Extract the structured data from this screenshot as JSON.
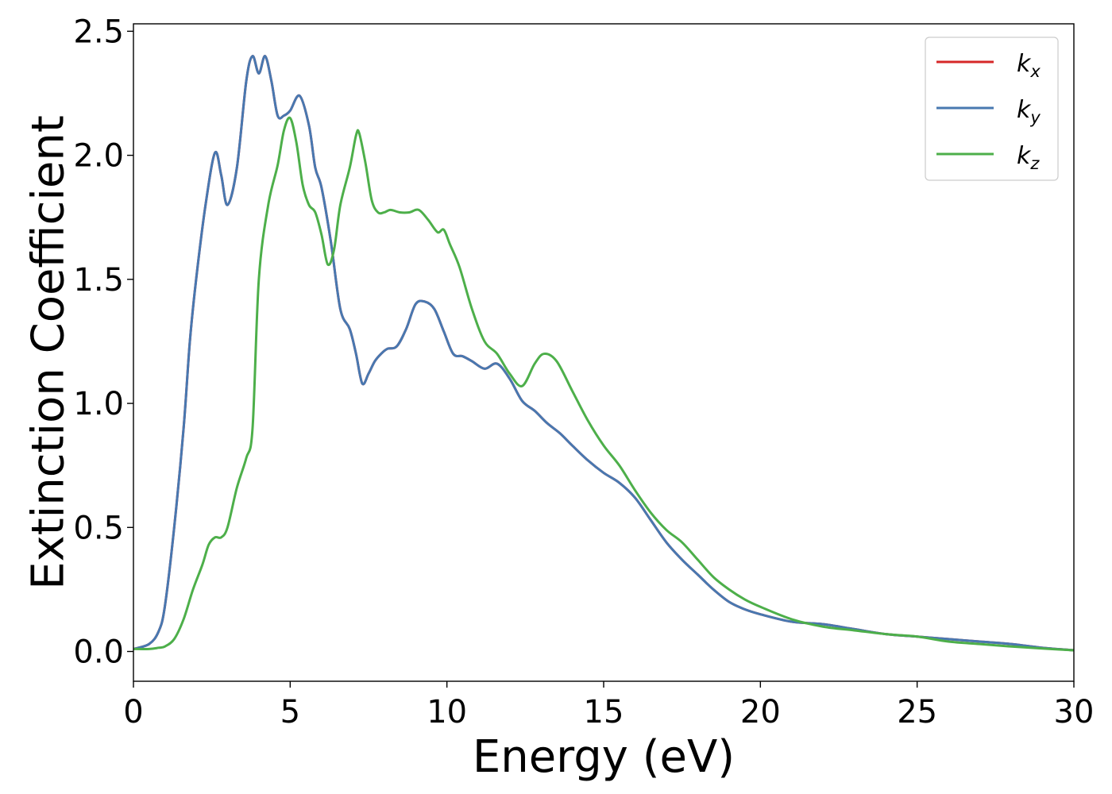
{
  "chart_data": {
    "type": "line",
    "xlabel": "Energy (eV)",
    "ylabel": "Extinction Coefficient",
    "xlim": [
      0,
      30
    ],
    "ylim": [
      -0.12,
      2.53
    ],
    "xticks": [
      0,
      5,
      10,
      15,
      20,
      25,
      30
    ],
    "xtick_labels": [
      "0",
      "5",
      "10",
      "15",
      "20",
      "25",
      "30"
    ],
    "yticks": [
      0.0,
      0.5,
      1.0,
      1.5,
      2.0,
      2.5
    ],
    "ytick_labels": [
      "0.0",
      "0.5",
      "1.0",
      "1.5",
      "2.0",
      "2.5"
    ],
    "grid": false,
    "legend_position": "top-right",
    "series": [
      {
        "name": "k",
        "subscript": "x",
        "color": "#d62728",
        "x": [
          0,
          0.5,
          0.8,
          1.0,
          1.3,
          1.6,
          1.8,
          2.0,
          2.3,
          2.6,
          2.8,
          3.0,
          3.3,
          3.6,
          3.8,
          4.0,
          4.2,
          4.4,
          4.6,
          4.8,
          5.0,
          5.3,
          5.6,
          5.8,
          6.0,
          6.3,
          6.6,
          6.9,
          7.1,
          7.3,
          7.5,
          7.7,
          7.9,
          8.1,
          8.4,
          8.7,
          9.0,
          9.3,
          9.6,
          9.9,
          10.2,
          10.5,
          10.8,
          11.2,
          11.6,
          12.0,
          12.4,
          12.8,
          13.2,
          13.6,
          14.0,
          14.5,
          15.0,
          15.5,
          16.0,
          16.5,
          17.0,
          17.5,
          18.0,
          18.5,
          19.0,
          19.5,
          20.0,
          21.0,
          22.0,
          23.0,
          24.0,
          25.0,
          26.0,
          27.0,
          28.0,
          29.0,
          30.0
        ],
        "y": [
          0.01,
          0.03,
          0.08,
          0.18,
          0.5,
          0.9,
          1.25,
          1.5,
          1.8,
          2.01,
          1.92,
          1.8,
          1.95,
          2.3,
          2.4,
          2.33,
          2.4,
          2.3,
          2.16,
          2.16,
          2.18,
          2.24,
          2.12,
          1.95,
          1.87,
          1.65,
          1.38,
          1.3,
          1.2,
          1.08,
          1.12,
          1.17,
          1.2,
          1.22,
          1.23,
          1.3,
          1.4,
          1.41,
          1.38,
          1.29,
          1.2,
          1.19,
          1.17,
          1.14,
          1.16,
          1.1,
          1.01,
          0.97,
          0.92,
          0.88,
          0.83,
          0.77,
          0.72,
          0.68,
          0.62,
          0.53,
          0.44,
          0.37,
          0.31,
          0.25,
          0.2,
          0.17,
          0.15,
          0.12,
          0.11,
          0.09,
          0.07,
          0.06,
          0.05,
          0.04,
          0.03,
          0.015,
          0.005
        ]
      },
      {
        "name": "k",
        "subscript": "y",
        "color": "#4878b0",
        "x": [
          0,
          0.5,
          0.8,
          1.0,
          1.3,
          1.6,
          1.8,
          2.0,
          2.3,
          2.6,
          2.8,
          3.0,
          3.3,
          3.6,
          3.8,
          4.0,
          4.2,
          4.4,
          4.6,
          4.8,
          5.0,
          5.3,
          5.6,
          5.8,
          6.0,
          6.3,
          6.6,
          6.9,
          7.1,
          7.3,
          7.5,
          7.7,
          7.9,
          8.1,
          8.4,
          8.7,
          9.0,
          9.3,
          9.6,
          9.9,
          10.2,
          10.5,
          10.8,
          11.2,
          11.6,
          12.0,
          12.4,
          12.8,
          13.2,
          13.6,
          14.0,
          14.5,
          15.0,
          15.5,
          16.0,
          16.5,
          17.0,
          17.5,
          18.0,
          18.5,
          19.0,
          19.5,
          20.0,
          21.0,
          22.0,
          23.0,
          24.0,
          25.0,
          26.0,
          27.0,
          28.0,
          29.0,
          30.0
        ],
        "y": [
          0.01,
          0.03,
          0.08,
          0.18,
          0.5,
          0.9,
          1.25,
          1.5,
          1.8,
          2.01,
          1.92,
          1.8,
          1.95,
          2.3,
          2.4,
          2.33,
          2.4,
          2.3,
          2.16,
          2.16,
          2.18,
          2.24,
          2.12,
          1.95,
          1.87,
          1.65,
          1.38,
          1.3,
          1.2,
          1.08,
          1.12,
          1.17,
          1.2,
          1.22,
          1.23,
          1.3,
          1.4,
          1.41,
          1.38,
          1.29,
          1.2,
          1.19,
          1.17,
          1.14,
          1.16,
          1.1,
          1.01,
          0.97,
          0.92,
          0.88,
          0.83,
          0.77,
          0.72,
          0.68,
          0.62,
          0.53,
          0.44,
          0.37,
          0.31,
          0.25,
          0.2,
          0.17,
          0.15,
          0.12,
          0.11,
          0.09,
          0.07,
          0.06,
          0.05,
          0.04,
          0.03,
          0.015,
          0.005
        ]
      },
      {
        "name": "k",
        "subscript": "z",
        "color": "#4daf4a",
        "x": [
          0,
          0.5,
          0.8,
          1.0,
          1.3,
          1.6,
          1.9,
          2.2,
          2.4,
          2.6,
          2.8,
          3.0,
          3.3,
          3.6,
          3.8,
          4.0,
          4.3,
          4.6,
          4.8,
          5.0,
          5.2,
          5.4,
          5.6,
          5.8,
          6.0,
          6.2,
          6.4,
          6.6,
          6.9,
          7.1,
          7.2,
          7.4,
          7.6,
          7.8,
          8.0,
          8.2,
          8.5,
          8.8,
          9.1,
          9.4,
          9.7,
          9.9,
          10.1,
          10.4,
          10.8,
          11.2,
          11.6,
          12.0,
          12.4,
          12.8,
          13.1,
          13.5,
          14.0,
          14.5,
          15.0,
          15.5,
          16.0,
          16.5,
          17.0,
          17.5,
          18.0,
          18.5,
          19.0,
          19.5,
          20.0,
          21.0,
          22.0,
          23.0,
          24.0,
          25.0,
          26.0,
          27.0,
          28.0,
          29.0,
          30.0
        ],
        "y": [
          0.01,
          0.01,
          0.015,
          0.02,
          0.05,
          0.13,
          0.25,
          0.35,
          0.43,
          0.46,
          0.46,
          0.5,
          0.66,
          0.78,
          0.9,
          1.5,
          1.8,
          1.96,
          2.1,
          2.15,
          2.05,
          1.88,
          1.8,
          1.77,
          1.68,
          1.56,
          1.62,
          1.8,
          1.95,
          2.08,
          2.09,
          1.97,
          1.82,
          1.77,
          1.77,
          1.78,
          1.77,
          1.77,
          1.78,
          1.74,
          1.69,
          1.7,
          1.64,
          1.55,
          1.38,
          1.25,
          1.2,
          1.12,
          1.07,
          1.16,
          1.2,
          1.17,
          1.05,
          0.93,
          0.83,
          0.75,
          0.65,
          0.56,
          0.49,
          0.44,
          0.37,
          0.3,
          0.25,
          0.21,
          0.18,
          0.13,
          0.1,
          0.085,
          0.07,
          0.06,
          0.04,
          0.03,
          0.02,
          0.012,
          0.005
        ]
      }
    ]
  }
}
